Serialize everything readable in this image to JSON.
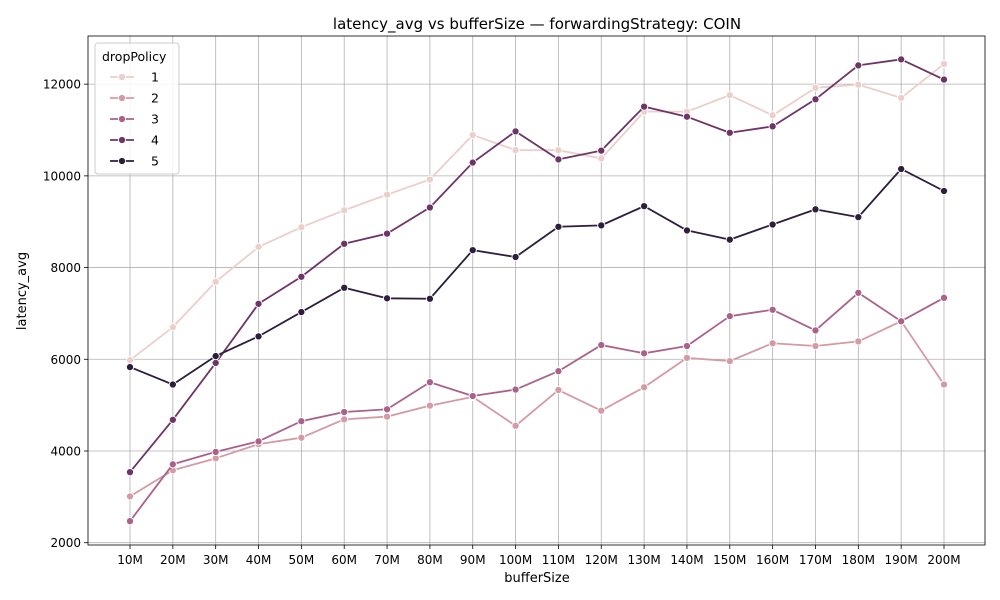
{
  "chart_data": {
    "type": "line",
    "title": "latency_avg vs bufferSize — forwardingStrategy: COIN",
    "xlabel": "bufferSize",
    "ylabel": "latency_avg",
    "categories": [
      "10M",
      "20M",
      "30M",
      "40M",
      "50M",
      "60M",
      "70M",
      "80M",
      "90M",
      "100M",
      "110M",
      "120M",
      "130M",
      "140M",
      "150M",
      "160M",
      "170M",
      "180M",
      "190M",
      "200M"
    ],
    "ylim": [
      1950,
      13050
    ],
    "yticks": [
      2000,
      4000,
      6000,
      8000,
      10000,
      12000
    ],
    "grid": true,
    "legend": {
      "title": "dropPolicy",
      "position": "top-left"
    },
    "series": [
      {
        "name": "1",
        "color": "#ebcfcb",
        "values": [
          5980,
          6700,
          7690,
          8450,
          8880,
          9250,
          9590,
          9920,
          10890,
          10560,
          10560,
          10380,
          11400,
          11400,
          11760,
          11320,
          11920,
          11990,
          11700,
          12440
        ]
      },
      {
        "name": "2",
        "color": "#d49aa5",
        "values": [
          3010,
          3580,
          3840,
          4150,
          4290,
          4690,
          4750,
          4990,
          5180,
          4550,
          5330,
          4880,
          5390,
          6030,
          5960,
          6350,
          6290,
          6390,
          6830,
          5450
        ]
      },
      {
        "name": "3",
        "color": "#a9638a",
        "values": [
          2470,
          3710,
          3980,
          4210,
          4650,
          4850,
          4910,
          5500,
          5200,
          5340,
          5740,
          6310,
          6130,
          6290,
          6940,
          7080,
          6630,
          7450,
          6830,
          7340
        ]
      },
      {
        "name": "4",
        "color": "#6d3466",
        "values": [
          3540,
          4680,
          5920,
          7210,
          7800,
          8520,
          8740,
          9310,
          10290,
          10970,
          10360,
          10550,
          11510,
          11290,
          10940,
          11080,
          11670,
          12410,
          12540,
          12100
        ]
      },
      {
        "name": "5",
        "color": "#2d1e3e",
        "values": [
          5830,
          5450,
          6070,
          6500,
          7030,
          7560,
          7330,
          7320,
          8380,
          8230,
          8890,
          8920,
          9340,
          8810,
          8610,
          8940,
          9270,
          9100,
          10150,
          9670
        ]
      }
    ]
  }
}
